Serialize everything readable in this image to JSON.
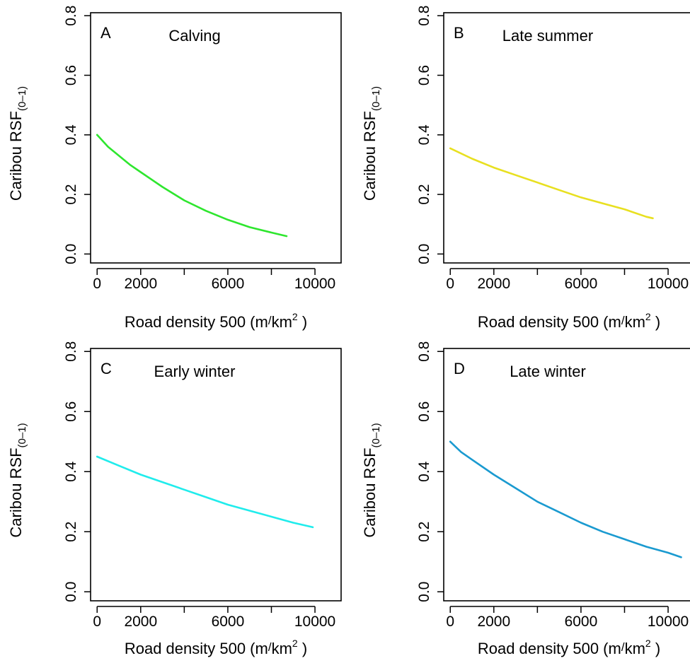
{
  "figure": {
    "panels": [
      {
        "letter": "A",
        "title": "Calving",
        "ylabel_main": "Caribou RSF",
        "ylabel_sub": "(0–1)",
        "xlabel_main": "Road density 500 (m",
        "xlabel_slash": "/",
        "xlabel_unit": "km",
        "xlabel_exp": "2",
        "xlabel_close": " )"
      },
      {
        "letter": "B",
        "title": "Late summer",
        "ylabel_main": "Caribou RSF",
        "ylabel_sub": "(0–1)",
        "xlabel_main": "Road density 500 (m",
        "xlabel_slash": "/",
        "xlabel_unit": "km",
        "xlabel_exp": "2",
        "xlabel_close": " )"
      },
      {
        "letter": "C",
        "title": "Early winter",
        "ylabel_main": "Caribou RSF",
        "ylabel_sub": "(0–1)",
        "xlabel_main": "Road density 500 (m",
        "xlabel_slash": "/",
        "xlabel_unit": "km",
        "xlabel_exp": "2",
        "xlabel_close": " )"
      },
      {
        "letter": "D",
        "title": "Late winter",
        "ylabel_main": "Caribou RSF",
        "ylabel_sub": "(0–1)",
        "xlabel_main": "Road density 500 (m",
        "xlabel_slash": "/",
        "xlabel_unit": "km",
        "xlabel_exp": "2",
        "xlabel_close": " )"
      }
    ]
  },
  "chart_data": [
    {
      "type": "line",
      "panel": "A",
      "title": "Calving",
      "xlabel": "Road density 500 (m/km²)",
      "ylabel": "Caribou RSF(0–1)",
      "xlim": [
        -300,
        11200
      ],
      "ylim": [
        -0.03,
        0.81
      ],
      "xticks": [
        0,
        2000,
        4000,
        6000,
        8000,
        10000
      ],
      "xtick_labels": [
        "0",
        "2000",
        "",
        "6000",
        "",
        "10000"
      ],
      "yticks": [
        0,
        0.2,
        0.4,
        0.6,
        0.8
      ],
      "ytick_labels": [
        "0.0",
        "0.2",
        "0.4",
        "0.6",
        "0.8"
      ],
      "grid": false,
      "series": [
        {
          "color": "#2ee62e",
          "x": [
            0,
            500,
            1000,
            1500,
            2000,
            3000,
            4000,
            5000,
            6000,
            7000,
            8000,
            8700
          ],
          "y": [
            0.4,
            0.36,
            0.33,
            0.3,
            0.275,
            0.225,
            0.18,
            0.145,
            0.115,
            0.09,
            0.072,
            0.06
          ]
        }
      ]
    },
    {
      "type": "line",
      "panel": "B",
      "title": "Late summer",
      "xlabel": "Road density 500 (m/km²)",
      "ylabel": "Caribou RSF(0–1)",
      "xlim": [
        -300,
        11200
      ],
      "ylim": [
        -0.03,
        0.81
      ],
      "xticks": [
        0,
        2000,
        4000,
        6000,
        8000,
        10000
      ],
      "xtick_labels": [
        "0",
        "2000",
        "",
        "6000",
        "",
        "10000"
      ],
      "yticks": [
        0,
        0.2,
        0.4,
        0.6,
        0.8
      ],
      "ytick_labels": [
        "0.0",
        "0.2",
        "0.4",
        "0.6",
        "0.8"
      ],
      "grid": false,
      "series": [
        {
          "color": "#e8e020",
          "x": [
            0,
            1000,
            2000,
            3000,
            4000,
            5000,
            6000,
            7000,
            8000,
            9000,
            9300
          ],
          "y": [
            0.355,
            0.32,
            0.29,
            0.265,
            0.24,
            0.215,
            0.19,
            0.17,
            0.15,
            0.125,
            0.12
          ]
        }
      ]
    },
    {
      "type": "line",
      "panel": "C",
      "title": "Early winter",
      "xlabel": "Road density 500 (m/km²)",
      "ylabel": "Caribou RSF(0–1)",
      "xlim": [
        -300,
        11200
      ],
      "ylim": [
        -0.03,
        0.81
      ],
      "xticks": [
        0,
        2000,
        4000,
        6000,
        8000,
        10000
      ],
      "xtick_labels": [
        "0",
        "2000",
        "",
        "6000",
        "",
        "10000"
      ],
      "yticks": [
        0,
        0.2,
        0.4,
        0.6,
        0.8
      ],
      "ytick_labels": [
        "0.0",
        "0.2",
        "0.4",
        "0.6",
        "0.8"
      ],
      "grid": false,
      "series": [
        {
          "color": "#20ecec",
          "x": [
            0,
            1000,
            2000,
            3000,
            4000,
            5000,
            6000,
            7000,
            8000,
            9000,
            9900
          ],
          "y": [
            0.45,
            0.42,
            0.39,
            0.365,
            0.34,
            0.315,
            0.29,
            0.27,
            0.25,
            0.23,
            0.215
          ]
        }
      ]
    },
    {
      "type": "line",
      "panel": "D",
      "title": "Late winter",
      "xlabel": "Road density 500 (m/km²)",
      "ylabel": "Caribou RSF(0–1)",
      "xlim": [
        -300,
        11200
      ],
      "ylim": [
        -0.03,
        0.81
      ],
      "xticks": [
        0,
        2000,
        4000,
        6000,
        8000,
        10000
      ],
      "xtick_labels": [
        "0",
        "2000",
        "",
        "6000",
        "",
        "10000"
      ],
      "yticks": [
        0,
        0.2,
        0.4,
        0.6,
        0.8
      ],
      "ytick_labels": [
        "0.0",
        "0.2",
        "0.4",
        "0.6",
        "0.8"
      ],
      "grid": false,
      "series": [
        {
          "color": "#1a9ad0",
          "x": [
            0,
            500,
            1000,
            2000,
            3000,
            4000,
            5000,
            6000,
            7000,
            8000,
            9000,
            10000,
            10600
          ],
          "y": [
            0.5,
            0.465,
            0.44,
            0.39,
            0.345,
            0.3,
            0.265,
            0.23,
            0.2,
            0.175,
            0.15,
            0.13,
            0.115
          ]
        }
      ]
    }
  ]
}
